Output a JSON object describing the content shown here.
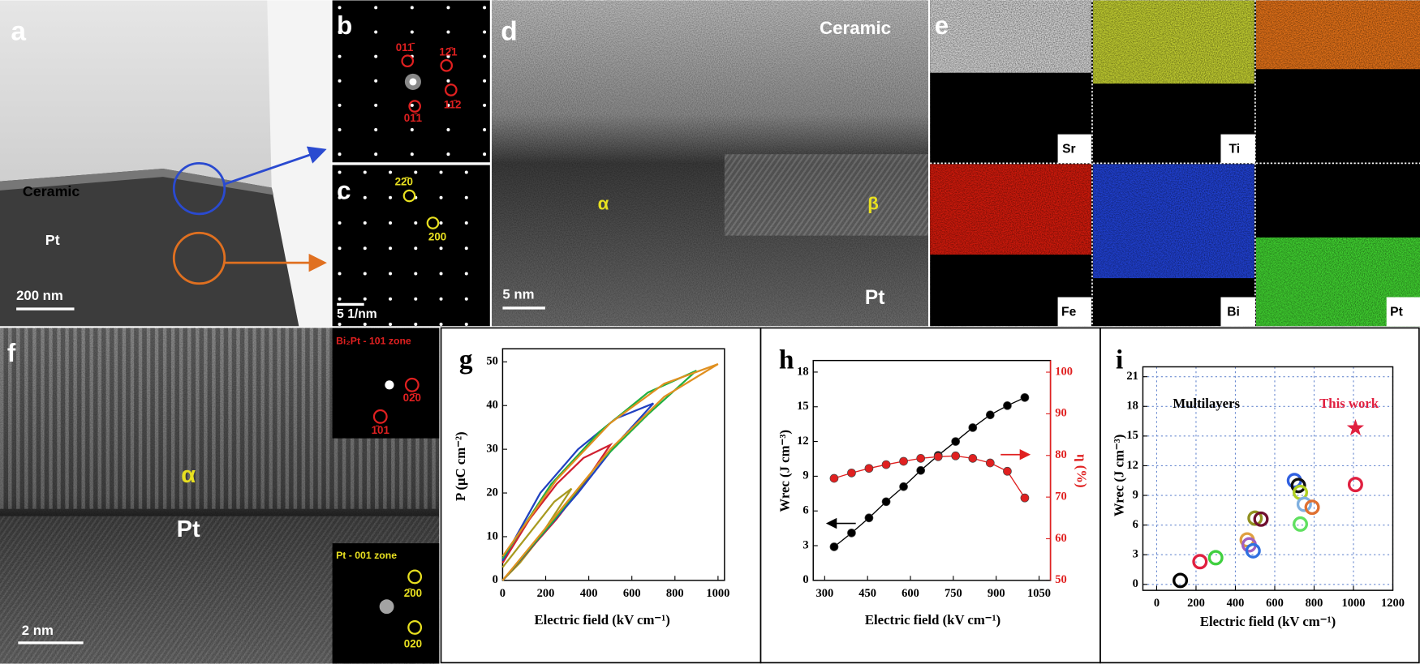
{
  "micrographs": {
    "a": {
      "letter": "a",
      "layer": "Ceramic",
      "substrate": "Pt",
      "scale": "200 nm"
    },
    "b": {
      "letter": "b",
      "spots": [
        "011̄",
        "12̄1",
        "11̄2",
        "01̄1"
      ]
    },
    "c": {
      "letter": "c",
      "spots": [
        "22̄0",
        "200"
      ],
      "scale": "5 1/nm"
    },
    "d": {
      "letter": "d",
      "layer": "Ceramic",
      "phase1": "α",
      "phase2": "β",
      "scale": "5 nm",
      "substrate": "Pt"
    },
    "e": {
      "letter": "e",
      "maps": [
        "Sr",
        "Ti",
        "Fe",
        "Bi",
        "Pt"
      ]
    },
    "f": {
      "letter": "f",
      "inset1": "Bi₂Pt - 101 zone",
      "inset1_spots": [
        "02̄0",
        "1̄01"
      ],
      "phase": "α",
      "substrate": "Pt",
      "inset2": "Pt - 001 zone",
      "inset2_spots": [
        "2̄00",
        "020"
      ],
      "scale": "2 nm"
    }
  },
  "chart_data": [
    {
      "type": "line",
      "panel": "g",
      "xlabel": "Electric field (kV cm⁻¹)",
      "ylabel": "P (μC cm⁻²)",
      "xlim": [
        0,
        1030
      ],
      "ylim": [
        0,
        53
      ],
      "xticks": [
        0,
        200,
        400,
        600,
        800,
        1000
      ],
      "yticks": [
        0,
        10,
        20,
        30,
        40,
        50
      ],
      "series": [
        {
          "color": "#a89a20",
          "x": [
            0,
            80,
            160,
            240,
            320,
            240,
            160,
            80,
            0
          ],
          "values": [
            0,
            4,
            9,
            15,
            21,
            18,
            13,
            8,
            3
          ]
        },
        {
          "color": "#d02030",
          "x": [
            0,
            125,
            250,
            375,
            500,
            375,
            250,
            125,
            0
          ],
          "values": [
            0,
            7,
            14,
            22,
            31,
            28,
            22,
            14,
            4
          ]
        },
        {
          "color": "#2040c0",
          "x": [
            0,
            175,
            350,
            525,
            700,
            525,
            350,
            175,
            0
          ],
          "values": [
            0,
            10,
            20,
            31,
            40.5,
            37,
            30,
            20,
            4.5
          ]
        },
        {
          "color": "#20b040",
          "x": [
            0,
            225,
            450,
            675,
            900,
            675,
            450,
            225,
            0
          ],
          "values": [
            0,
            13,
            27,
            38,
            48,
            43,
            34,
            22,
            5
          ]
        },
        {
          "color": "#e09020",
          "x": [
            0,
            250,
            500,
            750,
            1000,
            750,
            500,
            250,
            0
          ],
          "values": [
            0,
            15,
            30,
            42,
            49.5,
            45,
            36,
            23,
            5.5
          ]
        }
      ]
    },
    {
      "type": "line",
      "panel": "h",
      "markers": true,
      "xlabel": "Electric field (kV cm⁻¹)",
      "ylabel": "Wrec (J cm⁻³)",
      "y2label": "η (%)",
      "xlim": [
        260,
        1090
      ],
      "ylim": [
        0,
        19
      ],
      "y2lim": [
        50,
        102.8
      ],
      "xticks": [
        300,
        450,
        600,
        750,
        900,
        1050
      ],
      "yticks": [
        0,
        3,
        6,
        9,
        12,
        15,
        18
      ],
      "y2ticks": [
        50,
        60,
        70,
        80,
        90,
        100
      ],
      "x": [
        333,
        394,
        455,
        515,
        576,
        636,
        697,
        758,
        818,
        879,
        939,
        1000
      ],
      "series": [
        {
          "color": "#000000",
          "values": [
            2.9,
            4.1,
            5.4,
            6.8,
            8.1,
            9.5,
            10.8,
            12.0,
            13.2,
            14.3,
            15.1,
            15.8
          ]
        },
        {
          "color": "#e02020",
          "axis": "y2",
          "values": [
            74.5,
            75.8,
            76.9,
            77.8,
            78.6,
            79.3,
            79.7,
            79.9,
            79.3,
            78.2,
            76.2,
            69.8
          ]
        }
      ]
    },
    {
      "type": "scatter",
      "panel": "i",
      "xlabel": "Electric field (kV cm⁻¹)",
      "ylabel": "Wrec (J cm⁻³)",
      "grid": true,
      "xlim": [
        -70,
        1200
      ],
      "ylim": [
        -0.6,
        22
      ],
      "xticks": [
        0,
        200,
        400,
        600,
        800,
        1000,
        1200
      ],
      "yticks": [
        0,
        3,
        6,
        9,
        12,
        15,
        18,
        21
      ],
      "annotations": [
        "Multilayers",
        "This work"
      ],
      "series": [
        {
          "x": [
            120,
            220,
            300,
            460,
            470,
            490,
            500,
            530,
            700,
            720,
            730,
            750,
            730,
            790,
            1010
          ],
          "values": [
            0.4,
            2.3,
            2.7,
            4.5,
            4.0,
            3.4,
            6.7,
            6.6,
            10.5,
            10.0,
            9.3,
            8.1,
            6.1,
            7.8,
            10.1
          ],
          "colors": [
            "#000000",
            "#e02040",
            "#40d040",
            "#e0a040",
            "#a060c0",
            "#3070e0",
            "#909020",
            "#701030",
            "#3060e0",
            "#101010",
            "#b0d020",
            "#80b0e0",
            "#60e060",
            "#e07030",
            "#e02040"
          ]
        },
        {
          "marker": "star",
          "color": "#e02040",
          "x": [
            1010
          ],
          "values": [
            15.8
          ]
        }
      ]
    }
  ]
}
